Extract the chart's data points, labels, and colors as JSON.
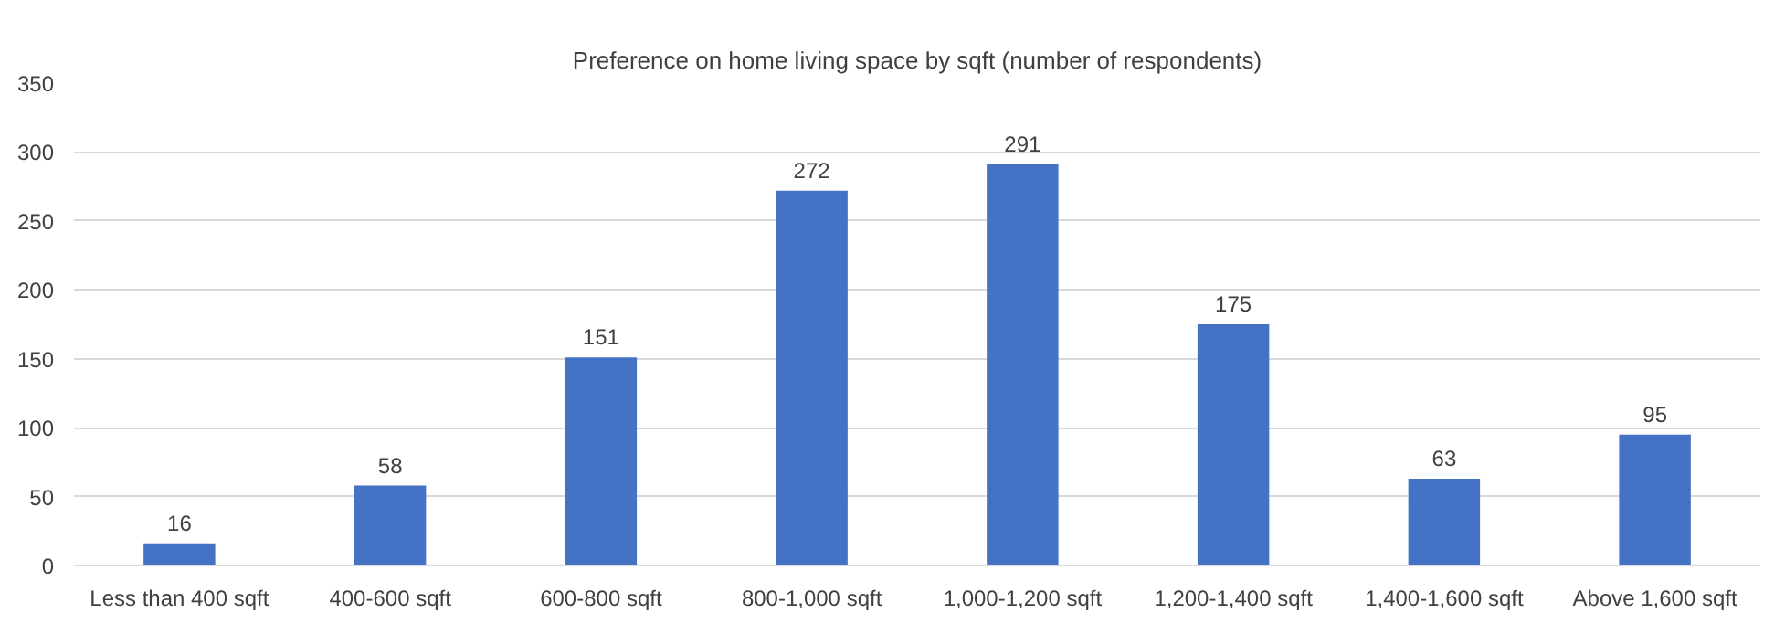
{
  "chart_data": {
    "type": "bar",
    "title": "Preference on home living space by sqft (number of respondents)",
    "categories": [
      "Less than 400 sqft",
      "400-600 sqft",
      "600-800 sqft",
      "800-1,000 sqft",
      "1,000-1,200 sqft",
      "1,200-1,400 sqft",
      "1,400-1,600 sqft",
      "Above 1,600 sqft"
    ],
    "values": [
      16,
      58,
      151,
      272,
      291,
      175,
      63,
      95
    ],
    "color": "#4472c4",
    "ylim": [
      0,
      350
    ],
    "yticks": [
      0,
      50,
      100,
      150,
      200,
      250,
      300,
      350
    ],
    "grid": "y",
    "data_labels": true
  }
}
